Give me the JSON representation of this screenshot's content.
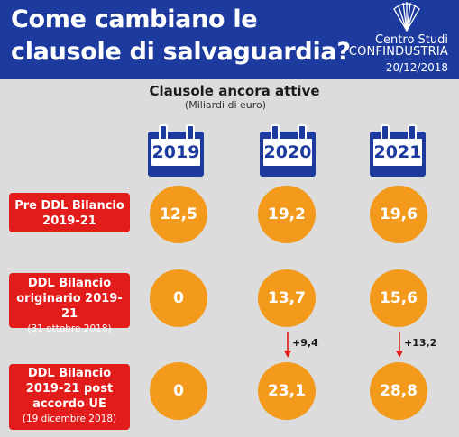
{
  "header": {
    "title": "Come cambiano le clausole di salvaguardia?",
    "org_line1": "Centro Studi",
    "org_line2": "CONFINDUSTRIA",
    "date": "20/12/2018",
    "logo_icon": "confindustria-shell-logo-icon"
  },
  "section": {
    "title": "Clausole ancora attive",
    "unit": "(Miliardi di euro)"
  },
  "years": [
    "2019",
    "2020",
    "2021"
  ],
  "rows": [
    {
      "label": "Pre DDL Bilancio 2019-21",
      "note": "",
      "values": [
        "12,5",
        "19,2",
        "19,6"
      ]
    },
    {
      "label": "DDL Bilancio originario 2019-21",
      "note": "(31 ottobre 2018)",
      "values": [
        "0",
        "13,7",
        "15,6"
      ]
    },
    {
      "label": "DDL Bilancio 2019-21 post accordo UE",
      "note": "(19 dicembre 2018)",
      "values": [
        "0",
        "23,1",
        "28,8"
      ]
    }
  ],
  "deltas": [
    "+9,4",
    "+13,2"
  ],
  "colors": {
    "header_bg": "#1d3a9e",
    "background": "#dcdcdc",
    "label_red": "#e21b1b",
    "circle_orange": "#f39a1c",
    "arrow_red": "#e21b1b"
  }
}
